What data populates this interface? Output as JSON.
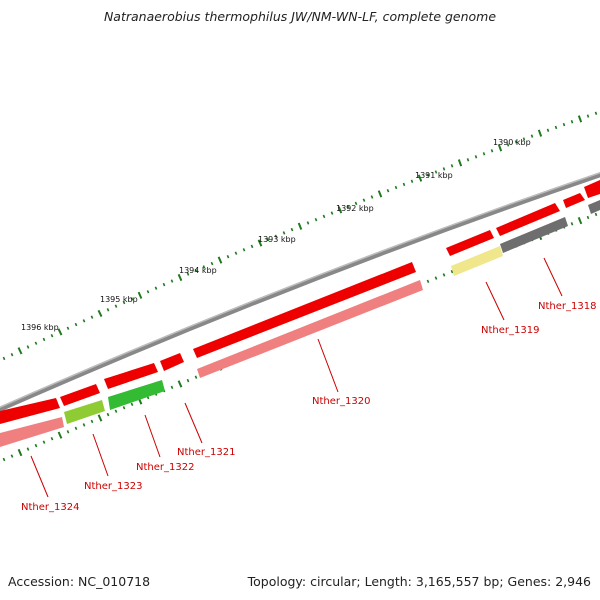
{
  "title": "Natranaerobius thermophilus JW/NM-WN-LF, complete genome",
  "footer": {
    "accession": "Accession: NC_010718",
    "summary": "Topology: circular; Length: 3,165,557 bp; Genes: 2,946"
  },
  "colors": {
    "backbone": "#7a7a7a",
    "tick": "#1e7a1e",
    "label": "#cc0000",
    "forward_cds": "#ee0000",
    "reverse_cds": "#f08080"
  },
  "ticks": [
    {
      "label": "1390 kbp"
    },
    {
      "label": "1391 kbp"
    },
    {
      "label": "1392 kbp"
    },
    {
      "label": "1393 kbp"
    },
    {
      "label": "1394 kbp"
    },
    {
      "label": "1395 kbp"
    },
    {
      "label": "1396 kbp"
    }
  ],
  "genes": [
    {
      "label": "Nther_1318"
    },
    {
      "label": "Nther_1319"
    },
    {
      "label": "Nther_1320"
    },
    {
      "label": "Nther_1321"
    },
    {
      "label": "Nther_1322"
    },
    {
      "label": "Nther_1323"
    },
    {
      "label": "Nther_1324"
    }
  ]
}
